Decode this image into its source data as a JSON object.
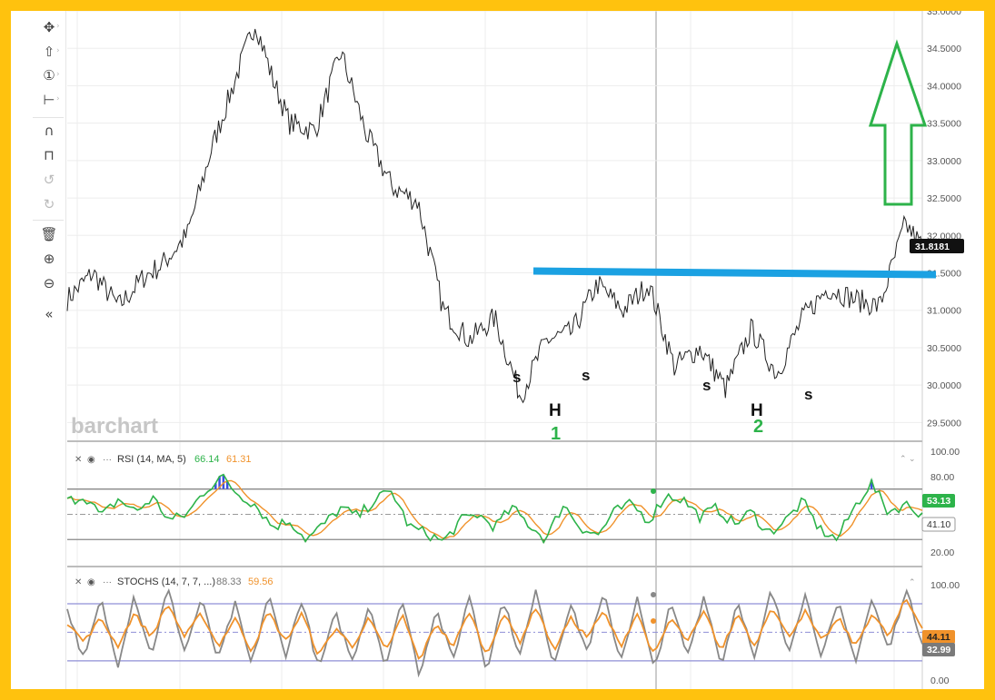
{
  "toolbar": {
    "icons": [
      "move-icon",
      "arrow-up-icon",
      "info-icon",
      "measure-icon",
      "magnet-icon",
      "lock-icon",
      "undo-icon",
      "redo-icon",
      "trash-icon",
      "zoom-in-icon",
      "zoom-out-icon",
      "collapse-icon"
    ]
  },
  "watermark": "barchart",
  "colors": {
    "frame": "#FFC20E",
    "price_line": "#222222",
    "neckline": "#1BA1E2",
    "annotation_green": "#2DB34A",
    "rsi_line": "#2DB34A",
    "rsi_ma": "#F0922B",
    "stoch_k": "#888888",
    "stoch_d": "#F0922B",
    "overbought": "#3B4FE0",
    "oversold": "#E02B2B"
  },
  "chart_data": [
    {
      "type": "line",
      "name": "price",
      "ylim": [
        29.25,
        35.0
      ],
      "yticks": [
        "35.0000",
        "34.5000",
        "34.0000",
        "33.5000",
        "33.0000",
        "32.5000",
        "32.0000",
        "31.5000",
        "31.0000",
        "30.5000",
        "30.0000",
        "29.5000"
      ],
      "last_value": "31.8181",
      "x": [
        0,
        3,
        6,
        9,
        11,
        14,
        17,
        20,
        22,
        24,
        26,
        29,
        32,
        35,
        38,
        41,
        44,
        47,
        50,
        53,
        56,
        59,
        62,
        65,
        68,
        71,
        74,
        77,
        80,
        83,
        86,
        89,
        92,
        95,
        98,
        100
      ],
      "values": [
        31.15,
        31.5,
        31.05,
        31.45,
        31.6,
        32.0,
        33.2,
        34.2,
        34.85,
        34.1,
        33.5,
        33.4,
        34.45,
        33.35,
        32.65,
        32.45,
        31.0,
        30.6,
        30.9,
        29.85,
        30.6,
        30.7,
        31.35,
        31.0,
        31.35,
        30.25,
        30.5,
        29.95,
        30.75,
        30.15,
        30.9,
        31.3,
        31.15,
        31.05,
        32.15,
        31.85
      ],
      "annotations": {
        "neckline_value": 31.5,
        "labels": [
          "s",
          "H",
          "1",
          "s",
          "s",
          "H",
          "2",
          "s"
        ]
      }
    },
    {
      "type": "line",
      "name": "RSI",
      "legend": [
        "RSI (14, MA, 5)",
        "66.14",
        "61.31"
      ],
      "ylim": [
        10,
        100
      ],
      "yticks": [
        "100.00",
        "80.00",
        "20.00"
      ],
      "levels": [
        70,
        30
      ],
      "badges": [
        "53.13",
        "41.10"
      ],
      "x": [
        0,
        2,
        4,
        6,
        8,
        10,
        12,
        14,
        16,
        18,
        20,
        22,
        24,
        26,
        28,
        30,
        32,
        34,
        36,
        38,
        40,
        42,
        44,
        46,
        48,
        50,
        52,
        54,
        56,
        58,
        60,
        62,
        64,
        66,
        68,
        70,
        72,
        74,
        76,
        78,
        80,
        82,
        84,
        86,
        88,
        90,
        92,
        94,
        96,
        98,
        100
      ],
      "values": [
        60,
        65,
        48,
        62,
        52,
        63,
        45,
        50,
        68,
        80,
        66,
        58,
        40,
        45,
        30,
        42,
        55,
        48,
        62,
        68,
        40,
        35,
        28,
        45,
        50,
        40,
        55,
        42,
        30,
        58,
        40,
        33,
        52,
        58,
        45,
        65,
        62,
        48,
        55,
        42,
        52,
        35,
        45,
        60,
        38,
        30,
        55,
        75,
        52,
        58,
        50
      ]
    },
    {
      "type": "line",
      "name": "STOCHS",
      "legend": [
        "STOCHS (14, 7, 7, ...)",
        "88.33",
        "59.56"
      ],
      "ylim": [
        -3,
        100
      ],
      "yticks": [
        "100.00",
        "0.00"
      ],
      "levels": [
        80,
        20
      ],
      "badges": [
        "44.11",
        "32.99"
      ],
      "k_values": [
        75,
        20,
        85,
        15,
        90,
        25,
        96,
        30,
        85,
        20,
        80,
        15,
        90,
        25,
        85,
        10,
        70,
        20,
        80,
        15,
        85,
        5,
        75,
        20,
        90,
        10,
        85,
        25,
        95,
        15,
        80,
        30,
        90,
        20,
        85,
        10,
        80,
        25,
        90,
        15,
        85,
        20,
        95,
        30,
        90,
        25,
        80,
        20,
        85,
        30,
        96,
        40
      ],
      "d_values": [
        60,
        40,
        65,
        35,
        70,
        45,
        80,
        45,
        70,
        35,
        65,
        30,
        72,
        40,
        70,
        25,
        55,
        35,
        65,
        30,
        68,
        20,
        60,
        35,
        72,
        25,
        70,
        40,
        78,
        30,
        65,
        45,
        72,
        35,
        70,
        25,
        65,
        40,
        72,
        30,
        70,
        35,
        78,
        45,
        72,
        40,
        65,
        35,
        70,
        45,
        85,
        55
      ]
    }
  ]
}
